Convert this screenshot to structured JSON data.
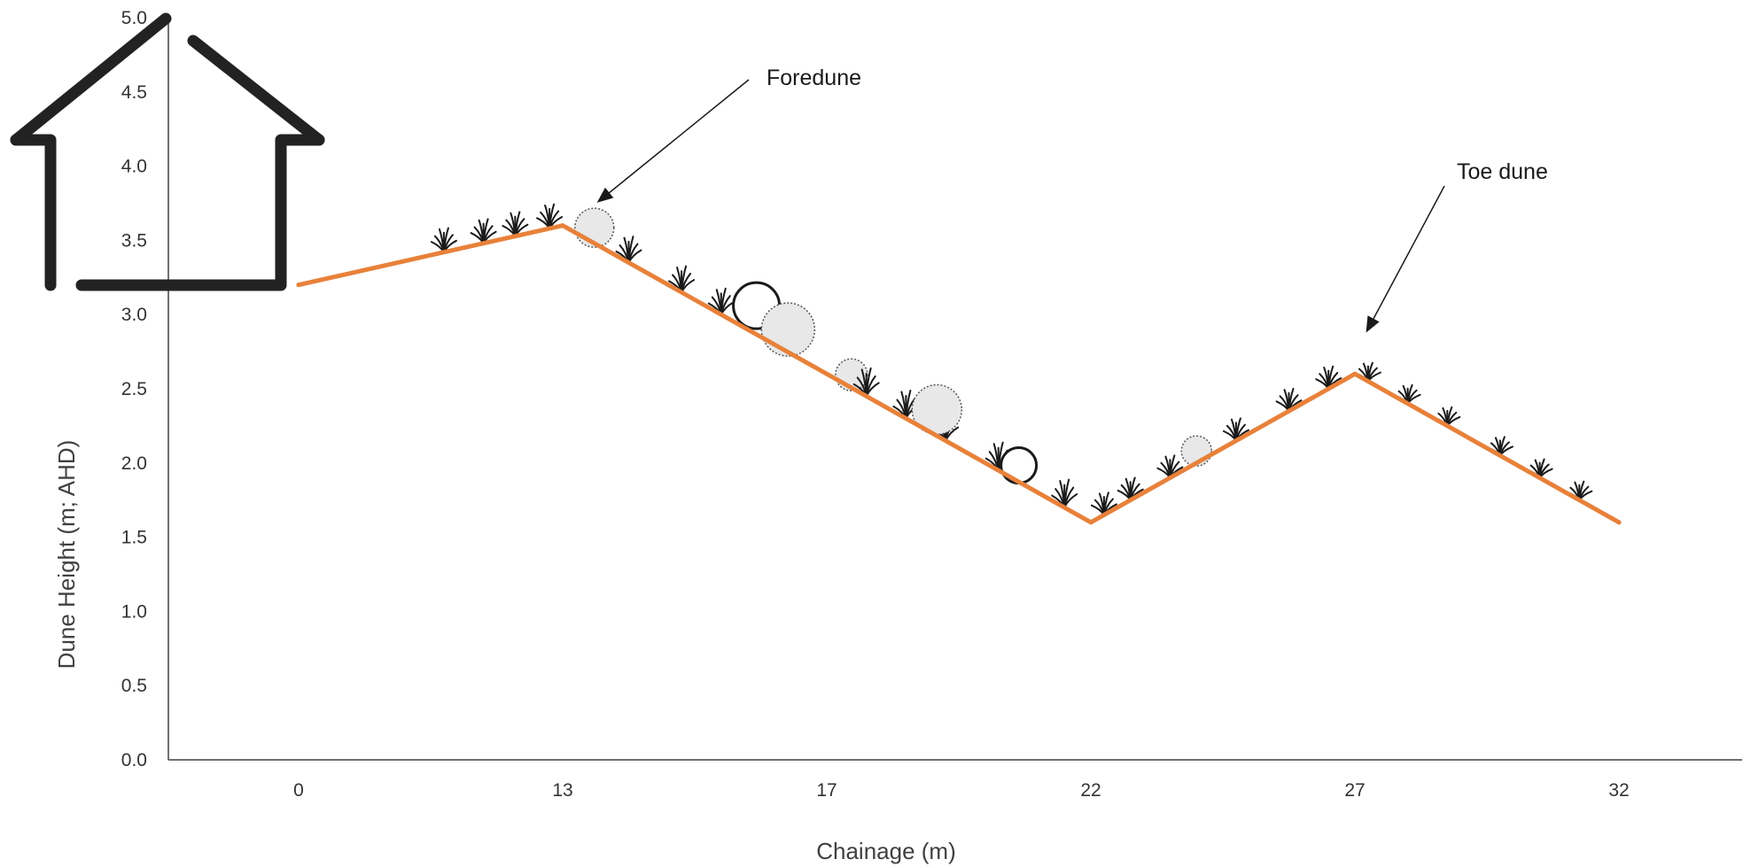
{
  "chart_data": {
    "type": "line",
    "title": "",
    "xlabel": "Chainage (m)",
    "ylabel": "Dune Height (m; AHD)",
    "categories": [
      "0",
      "13",
      "17",
      "22",
      "27",
      "32"
    ],
    "x": [
      0,
      13,
      17,
      22,
      27,
      32
    ],
    "series": [
      {
        "name": "",
        "color": "#e8813a",
        "values": [
          3.2,
          3.6,
          2.6,
          1.6,
          2.6,
          1.6
        ]
      }
    ],
    "ylim": [
      0,
      5
    ],
    "yticks": [
      "0.0",
      "0.5",
      "1.0",
      "1.5",
      "2.0",
      "2.5",
      "3.0",
      "3.5",
      "4.0",
      "4.5",
      "5.0"
    ],
    "grid": false,
    "annotations": [
      {
        "text": "Foredune",
        "target_index": 1
      },
      {
        "text": "Toe dune",
        "target_index": 4
      }
    ],
    "decorations": [
      "house-icon",
      "vegetation-grass-icon",
      "shrub-icon"
    ]
  }
}
